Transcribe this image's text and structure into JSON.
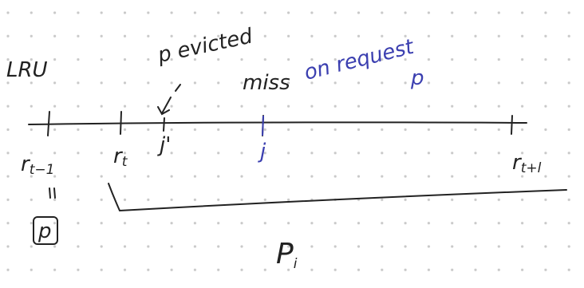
{
  "title": "LRU",
  "annotations": {
    "evicted": "p evicted",
    "miss": "miss",
    "request": "on request",
    "request_page": "p",
    "box_page": "p",
    "interval": {
      "label": "P",
      "sub": "i"
    }
  },
  "nodes": [
    {
      "label": "r",
      "sub": "t−1"
    },
    {
      "label": "r",
      "sub": "t"
    },
    {
      "label": "j'",
      "sub": null
    },
    {
      "label": "j",
      "sub": null
    },
    {
      "label": "r",
      "sub": "t+l"
    }
  ]
}
